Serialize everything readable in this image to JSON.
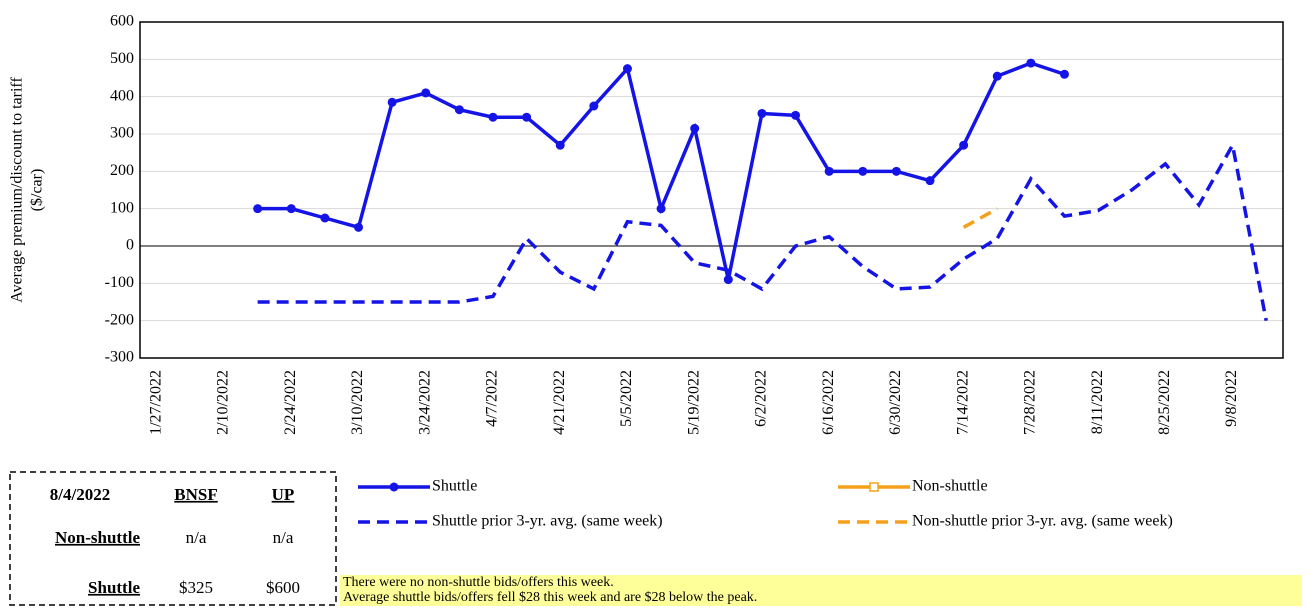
{
  "chart_data": {
    "type": "line",
    "y_label_lines": [
      "Average premium/discount  to tariff",
      "($/car)"
    ],
    "categories": [
      "1/27/2022",
      null,
      "2/10/2022",
      null,
      "2/24/2022",
      null,
      "3/10/2022",
      null,
      "3/24/2022",
      null,
      "4/7/2022",
      null,
      "4/21/2022",
      null,
      "5/5/2022",
      null,
      "5/19/2022",
      null,
      "6/2/2022",
      null,
      "6/16/2022",
      null,
      "6/30/2022",
      null,
      "7/14/2022",
      null,
      "7/28/2022",
      null,
      "8/11/2022",
      null,
      "8/25/2022",
      null,
      "9/8/2022",
      null
    ],
    "series": [
      {
        "name": "Shuttle",
        "color": "#1414e6",
        "dashed": false,
        "marker": "circle",
        "values": [
          null,
          null,
          null,
          100,
          100,
          75,
          50,
          385,
          410,
          365,
          345,
          345,
          270,
          375,
          475,
          100,
          315,
          -90,
          355,
          350,
          200,
          200,
          200,
          175,
          270,
          455,
          490,
          460,
          null,
          null,
          null,
          null,
          null,
          null
        ]
      },
      {
        "name": "Non-shuttle",
        "color": "#f5a01a",
        "dashed": false,
        "marker": "square",
        "values": [
          null,
          null,
          null,
          null,
          null,
          null,
          null,
          null,
          null,
          null,
          null,
          null,
          null,
          null,
          null,
          null,
          null,
          null,
          null,
          null,
          null,
          null,
          null,
          null,
          null,
          null,
          null,
          null,
          null,
          null,
          null,
          null,
          null,
          null
        ]
      },
      {
        "name": "Shuttle prior 3-yr. avg. (same week)",
        "color": "#1414e6",
        "dashed": true,
        "marker": null,
        "values": [
          null,
          null,
          null,
          -150,
          -150,
          -150,
          -150,
          -150,
          -150,
          -150,
          -135,
          20,
          -70,
          -115,
          65,
          55,
          -45,
          -65,
          -115,
          0,
          25,
          -55,
          -115,
          -110,
          -35,
          20,
          180,
          80,
          95,
          150,
          220,
          110,
          270,
          -200
        ]
      },
      {
        "name": "Non-shuttle prior 3-yr. avg. (same week)",
        "color": "#f5a01a",
        "dashed": true,
        "marker": null,
        "values": [
          null,
          null,
          null,
          null,
          null,
          null,
          null,
          null,
          null,
          null,
          null,
          null,
          null,
          null,
          null,
          null,
          null,
          null,
          null,
          null,
          null,
          null,
          null,
          null,
          50,
          100,
          null,
          null,
          null,
          null,
          null,
          null,
          null,
          null
        ]
      }
    ],
    "ylim": [
      -300,
      600
    ],
    "yticks": [
      -300,
      -200,
      -100,
      0,
      100,
      200,
      300,
      400,
      500,
      600
    ],
    "grid": true
  },
  "table": {
    "header": [
      "8/4/2022",
      "BNSF",
      "UP"
    ],
    "rows": [
      [
        "Non-shuttle",
        "n/a",
        "n/a"
      ],
      [
        "Shuttle",
        "$325",
        "$600"
      ]
    ]
  },
  "notes": [
    "There were no non-shuttle bids/offers this week.",
    "Average shuttle bids/offers fell $28 this week and are $28 below the peak."
  ]
}
